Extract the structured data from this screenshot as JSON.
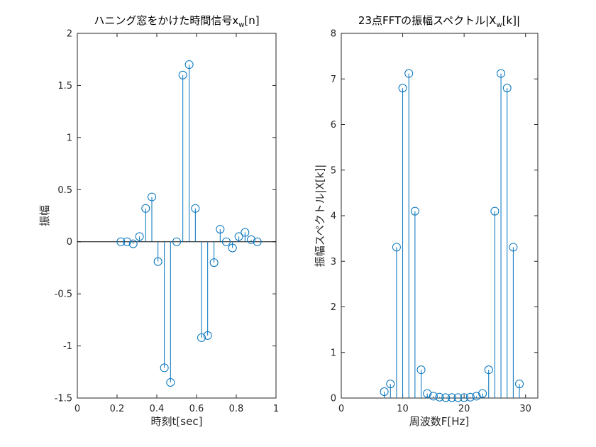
{
  "colors": {
    "stem": "#0072BD",
    "axis": "#262626",
    "baseline": "#000000",
    "background": "#ffffff"
  },
  "chart_data": [
    {
      "type": "stem",
      "title": "ハニング窓をかけた時間信号x",
      "title_sub": "w",
      "title_tail": "[n]",
      "xlabel": "時刻t[sec]",
      "ylabel": "振幅",
      "xlim": [
        0,
        1
      ],
      "ylim": [
        -1.5,
        2
      ],
      "xticks": [
        0,
        0.2,
        0.4,
        0.6,
        0.8,
        1
      ],
      "xtick_labels": [
        "0",
        "0.2",
        "0.4",
        "0.6",
        "0.8",
        "1"
      ],
      "yticks": [
        -1.5,
        -1,
        -0.5,
        0,
        0.5,
        1,
        1.5,
        2
      ],
      "ytick_labels": [
        "-1.5",
        "-1",
        "-0.5",
        "0",
        "0.5",
        "1",
        "1.5",
        "2"
      ],
      "grid": false,
      "baseline": 0,
      "x": [
        0.219,
        0.25,
        0.281,
        0.313,
        0.344,
        0.375,
        0.406,
        0.438,
        0.469,
        0.5,
        0.531,
        0.563,
        0.594,
        0.625,
        0.656,
        0.688,
        0.719,
        0.75,
        0.781,
        0.813,
        0.844,
        0.875,
        0.906
      ],
      "y": [
        0,
        0,
        -0.02,
        0.05,
        0.32,
        0.43,
        -0.19,
        -1.21,
        -1.35,
        0,
        1.6,
        1.7,
        0.32,
        -0.92,
        -0.9,
        -0.2,
        0.12,
        0,
        -0.06,
        0.05,
        0.09,
        0.02,
        0
      ]
    },
    {
      "type": "stem",
      "title": "23点FFTの振幅スペクトル|X",
      "title_sub": "w",
      "title_tail": "[k]|",
      "xlabel": "周波数F[Hz]",
      "ylabel": "振幅スペクトル|X[k]|",
      "xlim": [
        0,
        32
      ],
      "ylim": [
        0,
        8
      ],
      "xticks": [
        0,
        10,
        20,
        30
      ],
      "xtick_labels": [
        "0",
        "10",
        "20",
        "30"
      ],
      "yticks": [
        0,
        1,
        2,
        3,
        4,
        5,
        6,
        7,
        8
      ],
      "ytick_labels": [
        "0",
        "1",
        "2",
        "3",
        "4",
        "5",
        "6",
        "7",
        "8"
      ],
      "grid": false,
      "baseline": 0,
      "x": [
        7,
        8,
        9,
        10,
        11,
        12,
        13,
        14,
        15,
        16,
        17,
        18,
        19,
        20,
        21,
        22,
        23,
        24,
        25,
        26,
        27,
        28,
        29
      ],
      "y": [
        0.14,
        0.31,
        3.31,
        6.8,
        7.12,
        4.1,
        0.62,
        0.1,
        0.04,
        0.02,
        0.01,
        0.01,
        0.01,
        0.01,
        0.02,
        0.04,
        0.1,
        0.62,
        4.1,
        7.12,
        6.8,
        3.31,
        0.31
      ]
    }
  ]
}
